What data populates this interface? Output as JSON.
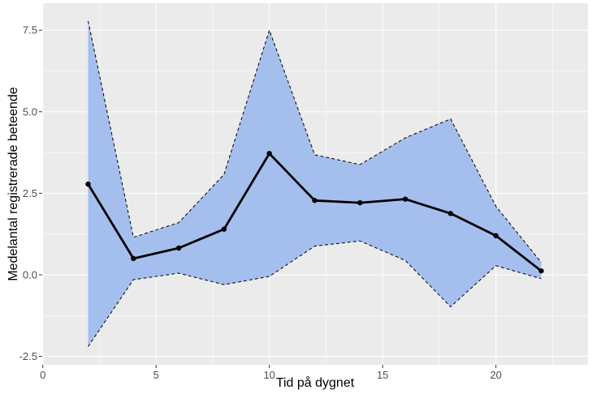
{
  "chart_data": {
    "type": "line",
    "title": "",
    "xlabel": "Tid på dygnet",
    "ylabel": "Medelantal registrerade beteende",
    "xlim": [
      0,
      24
    ],
    "ylim": [
      -2.5,
      8
    ],
    "x_ticks": [
      0,
      5,
      10,
      15,
      20
    ],
    "x_tick_labels": [
      "0",
      "5",
      "10",
      "15",
      "20"
    ],
    "y_ticks": [
      -2.5,
      0,
      2.5,
      5,
      7.5
    ],
    "y_tick_labels": [
      "-2.5",
      "0.0",
      "2.5",
      "5.0",
      "7.5"
    ],
    "grid": true,
    "colors": {
      "panel_background": "#EBEBEB",
      "grid_major": "#FFFFFF",
      "ribbon_fill": "#A4BFEE",
      "ribbon_border": "#000000",
      "line": "#000000"
    },
    "series": [
      {
        "x": [
          2,
          4,
          6,
          8,
          10,
          12,
          14,
          16,
          18,
          20,
          22
        ],
        "mean": [
          2.78,
          0.5,
          0.82,
          1.4,
          3.72,
          2.28,
          2.21,
          2.32,
          1.88,
          1.2,
          0.12
        ],
        "lower": [
          -2.2,
          -0.15,
          0.05,
          -0.3,
          -0.05,
          0.88,
          1.04,
          0.44,
          -0.98,
          0.28,
          -0.12
        ],
        "upper": [
          7.78,
          1.15,
          1.6,
          3.08,
          7.5,
          3.68,
          3.38,
          4.2,
          4.78,
          2.1,
          0.38
        ]
      }
    ]
  }
}
